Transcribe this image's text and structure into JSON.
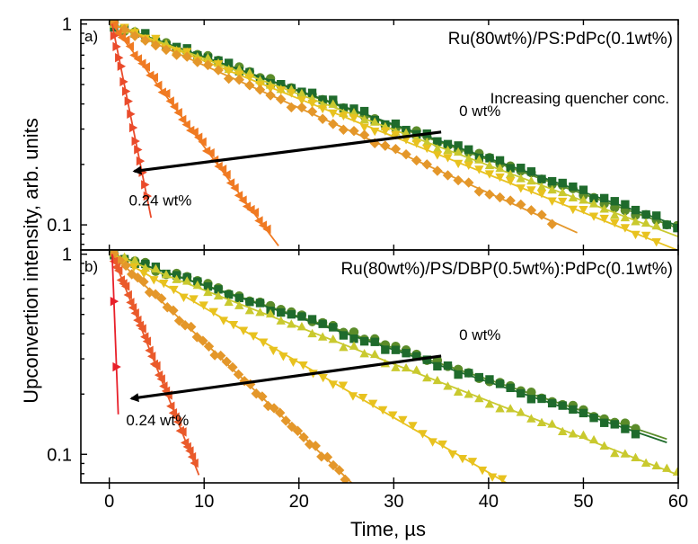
{
  "chart_data": {
    "type": "scatter",
    "xlabel": "Time, µs",
    "ylabel": "Upconvertion intensity, arb. units",
    "xlim": [
      -3,
      60
    ],
    "x_ticks": [
      0,
      10,
      20,
      30,
      40,
      50,
      60
    ],
    "y_scale": "log",
    "grid": false,
    "panels": [
      {
        "label": "a)",
        "title": "Ru(80wt%)/PS:PdPc(0.1wt%)",
        "ylim": [
          0.075,
          1.05
        ],
        "y_ticks": [
          {
            "value": 1,
            "label": "1"
          },
          {
            "value": 0.1,
            "label": "0.1"
          }
        ],
        "annotation": "Increasing quencher conc.",
        "label_high": "0 wt%",
        "label_low": "0.24 wt%",
        "arrow_from": [
          35,
          0.29
        ],
        "arrow_to": [
          1.5,
          0.185
        ],
        "series": [
          {
            "color": "#5b8c2a",
            "marker": "circle",
            "tau": 25.5,
            "xmax": 60
          },
          {
            "color": "#1f6b2c",
            "marker": "square",
            "tau": 25.8,
            "xmax": 60
          },
          {
            "color": "#c9c92e",
            "marker": "triangle-up",
            "tau": 24.5,
            "xmax": 58
          },
          {
            "color": "#e8c21f",
            "marker": "triangle-down",
            "tau": 23.0,
            "xmax": 58
          },
          {
            "color": "#e4972a",
            "marker": "diamond",
            "tau": 20.5,
            "xmax": 47
          },
          {
            "color": "#f07a22",
            "marker": "triangle-left",
            "tau": 6.9,
            "xmax": 17
          },
          {
            "color": "#ea4b2b",
            "marker": "triangle-right",
            "tau": 1.85,
            "xmax": 4.2
          }
        ]
      },
      {
        "label": "b)",
        "title": "Ru(80wt%)/PS/DBP(0.5wt%):PdPc(0.1wt%)",
        "ylim": [
          0.072,
          1.05
        ],
        "y_ticks": [
          {
            "value": 1,
            "label": "1"
          },
          {
            "value": 0.1,
            "label": "0.1"
          }
        ],
        "label_high": "0 wt%",
        "label_low": "0.24 wt%",
        "arrow_from": [
          35,
          0.31
        ],
        "arrow_to": [
          1.2,
          0.19
        ],
        "series": [
          {
            "color": "#5b8c2a",
            "marker": "circle",
            "tau": 27.5,
            "xmax": 56
          },
          {
            "color": "#1f6b2c",
            "marker": "square",
            "tau": 27.0,
            "xmax": 56
          },
          {
            "color": "#c9c92e",
            "marker": "triangle-up",
            "tau": 23.5,
            "xmax": 60
          },
          {
            "color": "#e8c21f",
            "marker": "triangle-down",
            "tau": 15.8,
            "xmax": 42
          },
          {
            "color": "#e4972a",
            "marker": "diamond",
            "tau": 9.6,
            "xmax": 25
          },
          {
            "color": "#ea5a2b",
            "marker": "triangle-left",
            "tau": 3.6,
            "xmax": 9
          },
          {
            "color": "#e8202a",
            "marker": "triangle-right",
            "tau": 0.35,
            "xmax": 0.9
          }
        ]
      }
    ]
  }
}
